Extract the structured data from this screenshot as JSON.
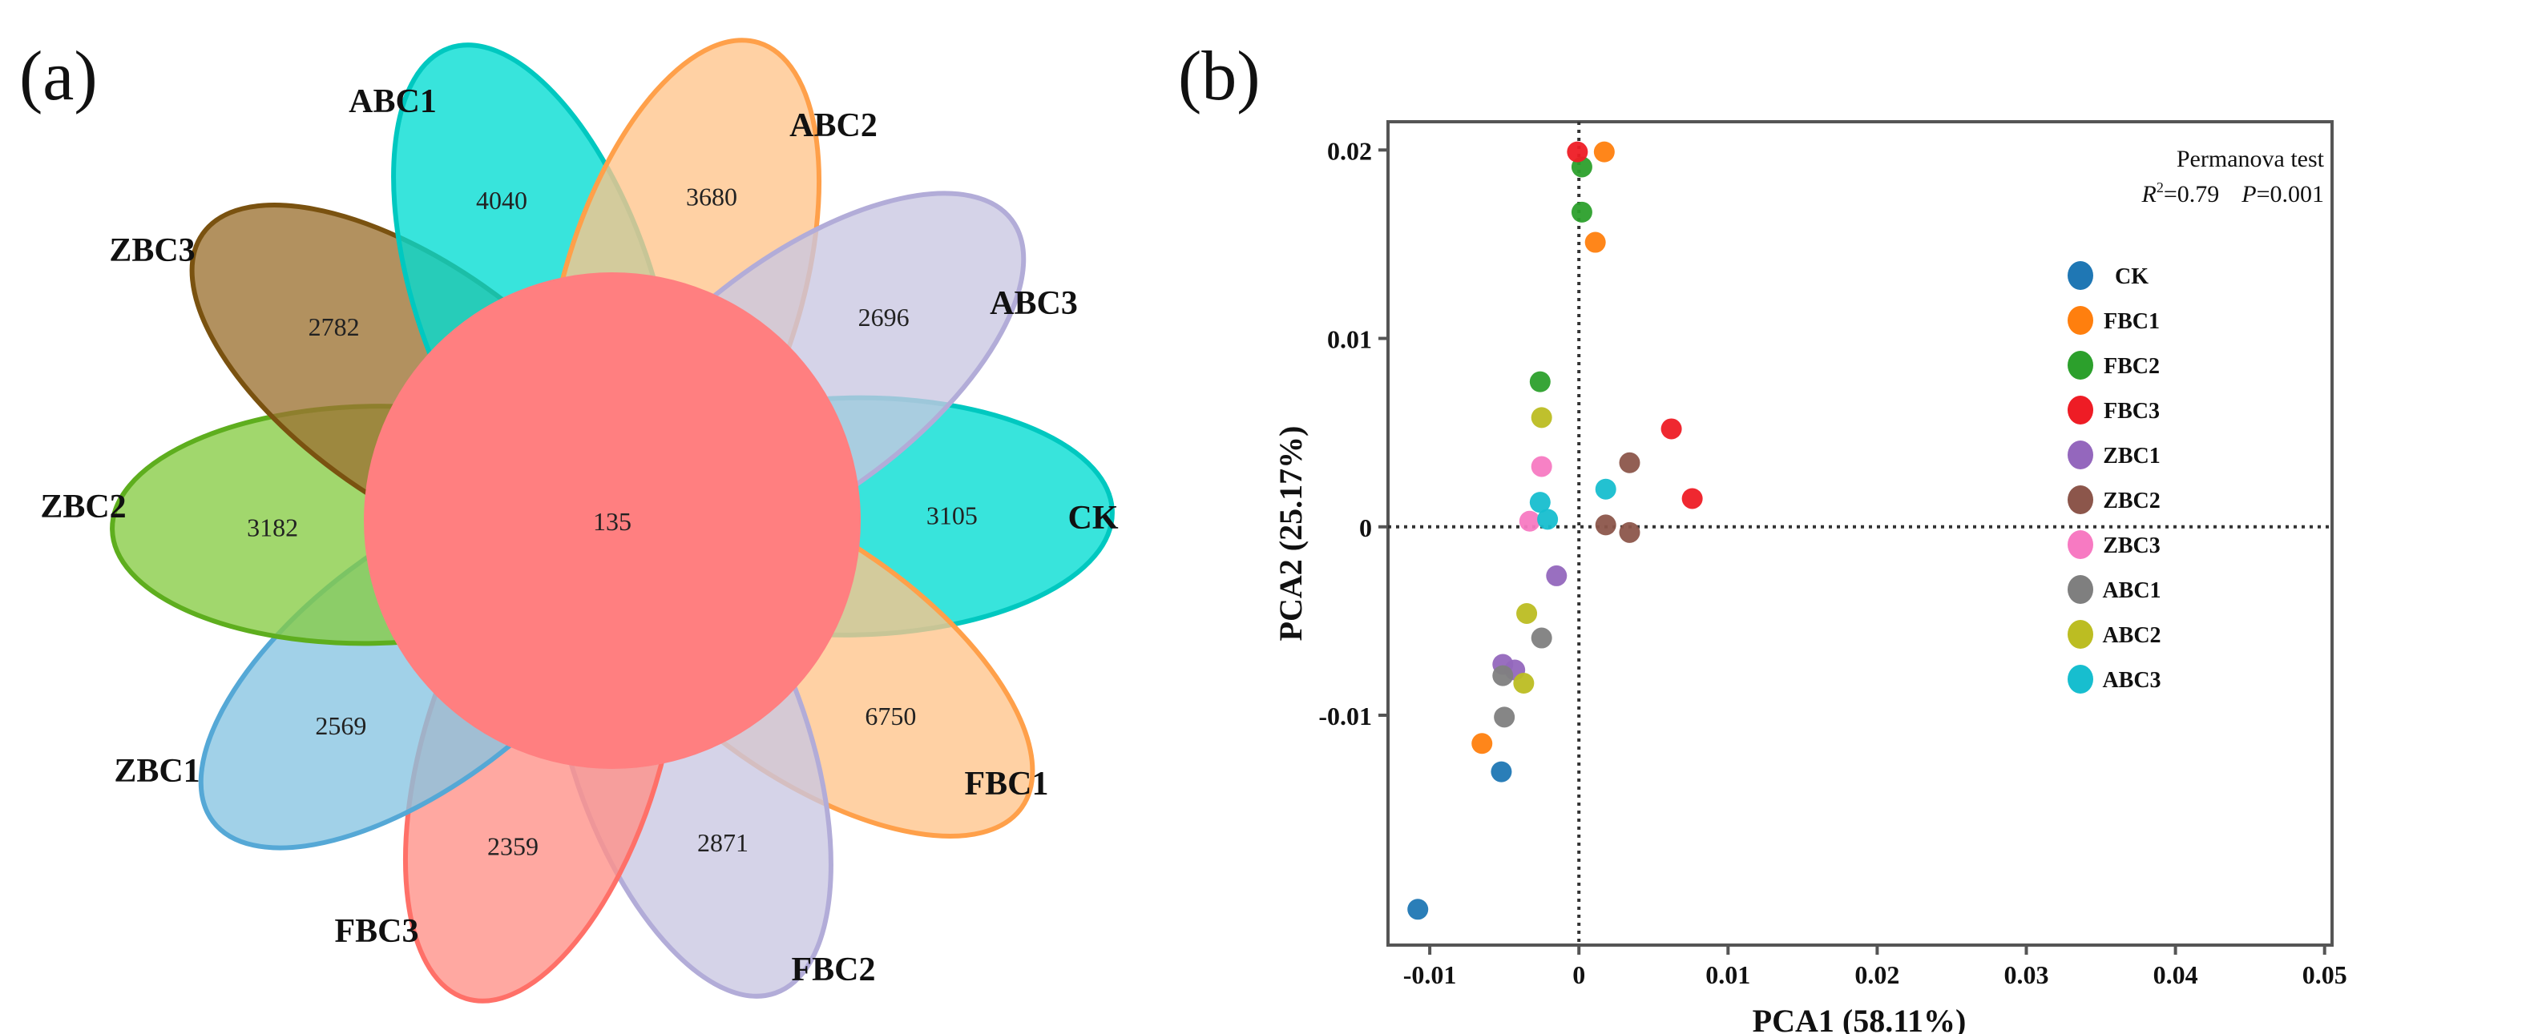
{
  "panels": {
    "a": "(a)",
    "b": "(b)"
  },
  "venn": {
    "core": {
      "value": "135",
      "color": "#ff7f80"
    },
    "petals": [
      {
        "name": "CK",
        "value": "3105",
        "fill": "#00dcd2",
        "stroke": "#00c8c0"
      },
      {
        "name": "FBC1",
        "value": "6750",
        "fill": "#ffc48a",
        "stroke": "#ffa04a"
      },
      {
        "name": "FBC2",
        "value": "2871",
        "fill": "#c9c6e2",
        "stroke": "#b2acd8"
      },
      {
        "name": "FBC3",
        "value": "2359",
        "fill": "#ff8f86",
        "stroke": "#ff7068"
      },
      {
        "name": "ZBC1",
        "value": "2569",
        "fill": "#86c4e2",
        "stroke": "#55a8d6"
      },
      {
        "name": "ZBC2",
        "value": "3182",
        "fill": "#86cc44",
        "stroke": "#5eae1e"
      },
      {
        "name": "ZBC3",
        "value": "2782",
        "fill": "#9c7232",
        "stroke": "#7a5210"
      },
      {
        "name": "ABC1",
        "value": "4040",
        "fill": "#00dcd2",
        "stroke": "#00c8c0"
      },
      {
        "name": "ABC2",
        "value": "3680",
        "fill": "#ffc48a",
        "stroke": "#ffa04a"
      },
      {
        "name": "ABC3",
        "value": "2696",
        "fill": "#c9c6e2",
        "stroke": "#b2acd8"
      }
    ]
  },
  "chart_data": {
    "type": "scatter",
    "xlabel": "PCA1 (58.11%)",
    "ylabel": "PCA2 (25.17%)",
    "xlim": [
      -0.0128,
      0.0505
    ],
    "ylim": [
      -0.0222,
      0.0215
    ],
    "xticks": [
      -0.01,
      0,
      0.01,
      0.02,
      0.03,
      0.04,
      0.05
    ],
    "xtick_labels": [
      "-0.01",
      "0",
      "0.01",
      "0.02",
      "0.03",
      "0.04",
      "0.05"
    ],
    "yticks": [
      -0.01,
      0,
      0.01,
      0.02
    ],
    "ytick_labels": [
      "-0.01",
      "0",
      "0.01",
      "0.02"
    ],
    "reference_lines": {
      "x": 0,
      "y": 0,
      "style": "dotted"
    },
    "annotation": {
      "title": "Permanova test",
      "r2_label": "R",
      "r2_sup": "2",
      "r2_value": "=0.79",
      "p_label": "P",
      "p_value": "=0.001"
    },
    "legend_position": "right",
    "series": [
      {
        "name": "CK",
        "color": "#1f77b4",
        "points": [
          [
            -0.0052,
            -0.013
          ],
          [
            -0.0108,
            -0.0203
          ]
        ]
      },
      {
        "name": "FBC1",
        "color": "#ff7f0e",
        "points": [
          [
            0.0017,
            0.0199
          ],
          [
            0.0011,
            0.0151
          ],
          [
            -0.0065,
            -0.0115
          ]
        ]
      },
      {
        "name": "FBC2",
        "color": "#2ca02c",
        "points": [
          [
            0.0002,
            0.0191
          ],
          [
            0.0002,
            0.0167
          ],
          [
            -0.0026,
            0.0077
          ]
        ]
      },
      {
        "name": "FBC3",
        "color": "#ee1c25",
        "points": [
          [
            -0.0001,
            0.0199
          ],
          [
            0.0062,
            0.0052
          ],
          [
            0.0076,
            0.0015
          ]
        ]
      },
      {
        "name": "ZBC1",
        "color": "#9467bd",
        "points": [
          [
            -0.0015,
            -0.0026
          ],
          [
            -0.0051,
            -0.0073
          ],
          [
            -0.0043,
            -0.0076
          ]
        ]
      },
      {
        "name": "ZBC2",
        "color": "#8c564b",
        "points": [
          [
            0.0034,
            0.0034
          ],
          [
            0.0018,
            0.0001
          ],
          [
            0.0034,
            -0.0003
          ]
        ]
      },
      {
        "name": "ZBC3",
        "color": "#f77ac2",
        "points": [
          [
            -0.0025,
            0.0032
          ],
          [
            -0.0033,
            0.0003
          ]
        ]
      },
      {
        "name": "ABC1",
        "color": "#7f7f7f",
        "points": [
          [
            -0.0025,
            -0.0059
          ],
          [
            -0.0051,
            -0.0079
          ],
          [
            -0.005,
            -0.0101
          ]
        ]
      },
      {
        "name": "ABC2",
        "color": "#bcbd22",
        "points": [
          [
            -0.0025,
            0.0058
          ],
          [
            -0.0035,
            -0.0046
          ],
          [
            -0.0037,
            -0.0083
          ]
        ]
      },
      {
        "name": "ABC3",
        "color": "#17becf",
        "points": [
          [
            -0.0026,
            0.0013
          ],
          [
            -0.0021,
            0.0004
          ],
          [
            0.0018,
            0.002
          ]
        ]
      }
    ]
  }
}
